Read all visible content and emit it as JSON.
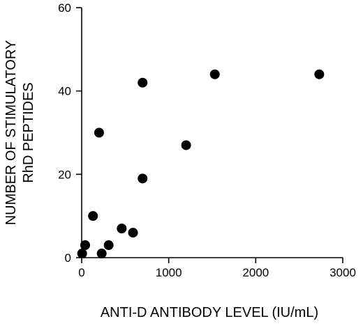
{
  "chart_data": {
    "type": "scatter",
    "title": "",
    "xlabel": "ANTI-D ANTIBODY LEVEL (IU/mL)",
    "ylabel_lines": [
      "NUMBER OF STIMULATORY",
      "RhD PEPTIDES"
    ],
    "xlim": [
      0,
      3000
    ],
    "ylim": [
      0,
      60
    ],
    "x_ticks": [
      0,
      1000,
      2000,
      3000
    ],
    "y_ticks": [
      0,
      20,
      40,
      60
    ],
    "x_tick_labels": [
      "0",
      "1000",
      "2000",
      "3000"
    ],
    "y_tick_labels": [
      "0",
      "20",
      "40",
      "60"
    ],
    "grid": false,
    "marker_color": "#000000",
    "points": [
      {
        "x": 5,
        "y": 1
      },
      {
        "x": 40,
        "y": 3
      },
      {
        "x": 130,
        "y": 10
      },
      {
        "x": 200,
        "y": 30
      },
      {
        "x": 230,
        "y": 1
      },
      {
        "x": 310,
        "y": 3
      },
      {
        "x": 460,
        "y": 7
      },
      {
        "x": 590,
        "y": 6
      },
      {
        "x": 700,
        "y": 42
      },
      {
        "x": 700,
        "y": 19
      },
      {
        "x": 1200,
        "y": 27
      },
      {
        "x": 1530,
        "y": 44
      },
      {
        "x": 2730,
        "y": 44
      }
    ]
  }
}
